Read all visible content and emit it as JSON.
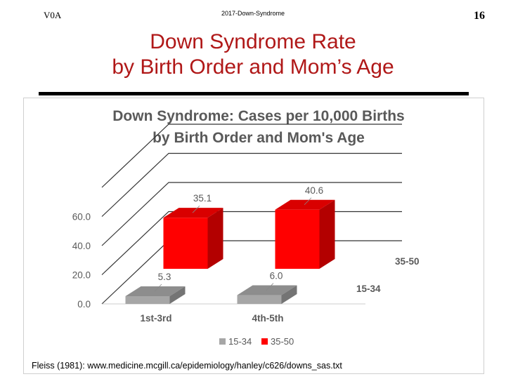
{
  "header": {
    "left_code": "V0A",
    "center_text": "2017-Down-Syndrome",
    "page_number": "16"
  },
  "slide": {
    "title_line1": "Down Syndrome Rate",
    "title_line2": "by Birth Order and Mom’s Age"
  },
  "chart_data": {
    "type": "bar",
    "style": "3d-clustered-depth",
    "title_line1": "Down Syndrome: Cases per 10,000 Births",
    "title_line2": "by Birth Order and Mom's Age",
    "categories": [
      "1st-3rd",
      "4th-5th"
    ],
    "series": [
      {
        "name": "15-34",
        "values": [
          5.3,
          6.0
        ],
        "color": "#a6a6a6"
      },
      {
        "name": "35-50",
        "values": [
          35.1,
          40.6
        ],
        "color": "#ff0000"
      }
    ],
    "depth_labels": [
      "15-34",
      "35-50"
    ],
    "y_ticks": [
      "0.0",
      "20.0",
      "40.0",
      "60.0"
    ],
    "ylim": [
      0,
      80
    ],
    "grid": true,
    "legend": "bottom",
    "legend_items": [
      "15-34",
      "35-50"
    ],
    "source_note": "Fleiss (1981): www.medicine.mcgill.ca/epidemiology/hanley/c626/downs_sas.txt"
  }
}
